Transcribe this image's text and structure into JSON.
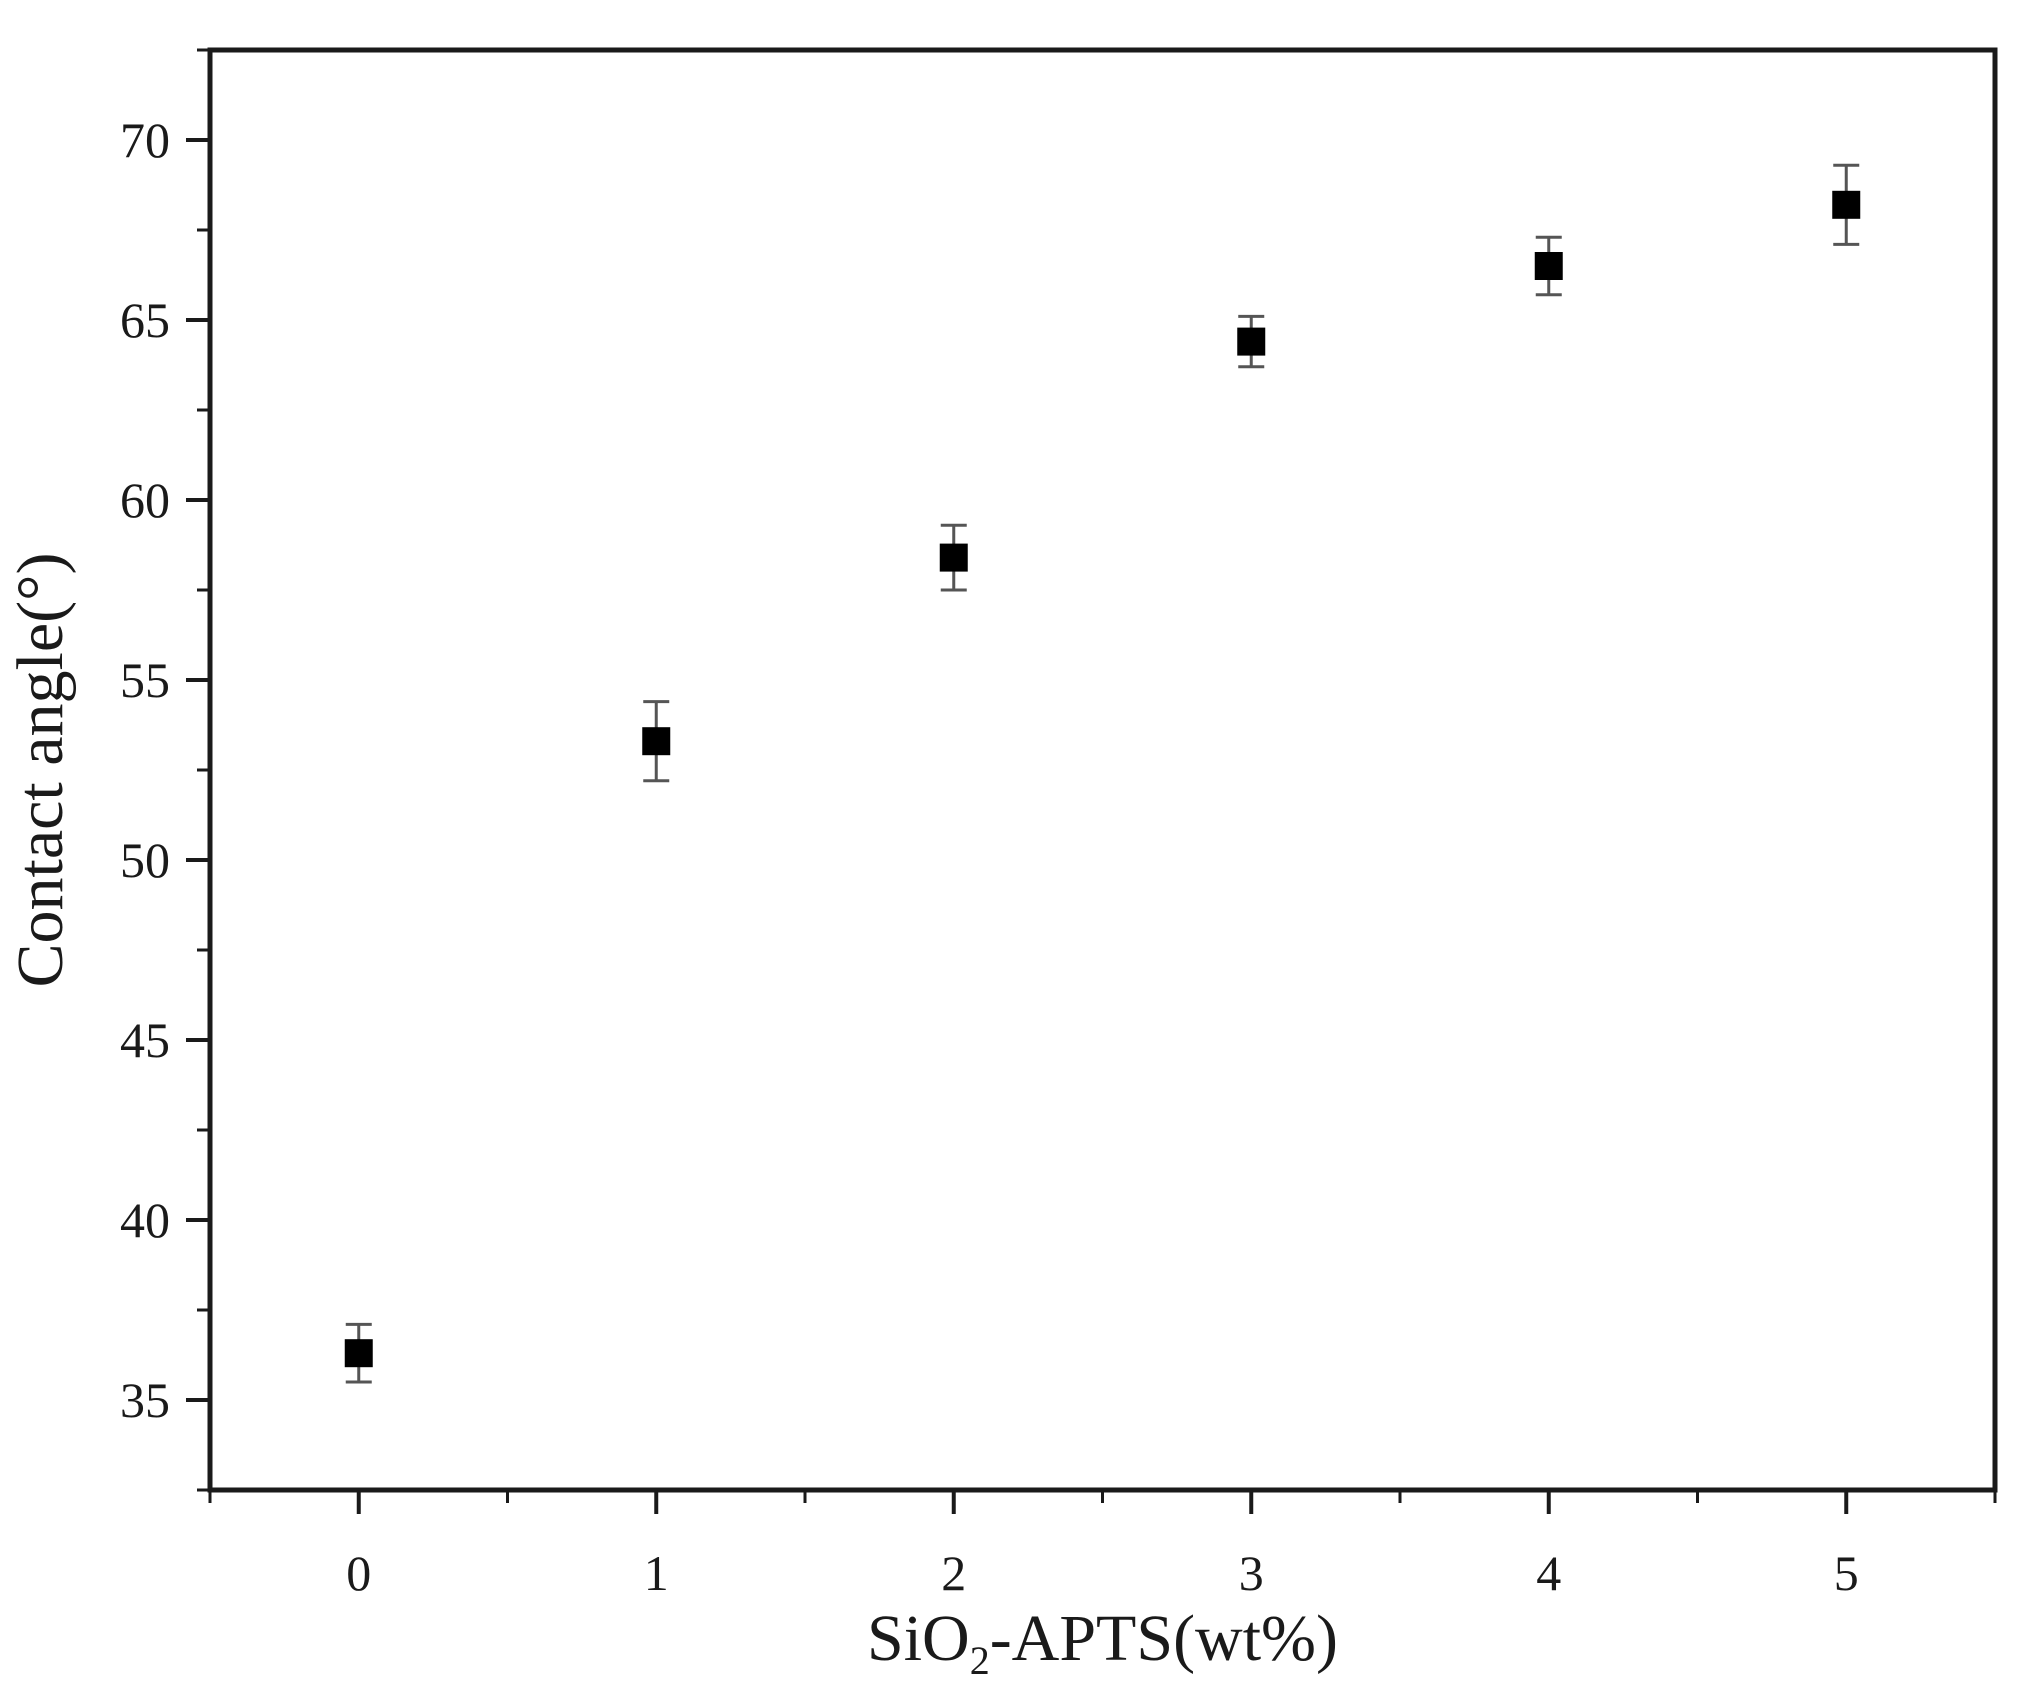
{
  "chart_data": {
    "type": "scatter",
    "title": "",
    "xlabel": {
      "main": "SiO",
      "subscript": "2",
      "rest": "-APTS(wt%)"
    },
    "ylabel": "Contact angle(°)",
    "xlim": [
      -0.5,
      5.5
    ],
    "ylim": [
      32.5,
      72.5
    ],
    "xticks": [
      0,
      1,
      2,
      3,
      4,
      5
    ],
    "yticks": [
      35,
      40,
      45,
      50,
      55,
      60,
      65,
      70
    ],
    "grid": false,
    "marker": "square",
    "marker_color": "#000000",
    "series": [
      {
        "x": [
          0,
          1,
          2,
          3,
          4,
          5
        ],
        "y": [
          36.3,
          53.3,
          58.4,
          64.4,
          66.5,
          68.2
        ],
        "error": [
          0.8,
          1.1,
          0.9,
          0.7,
          0.8,
          1.1
        ]
      }
    ]
  }
}
